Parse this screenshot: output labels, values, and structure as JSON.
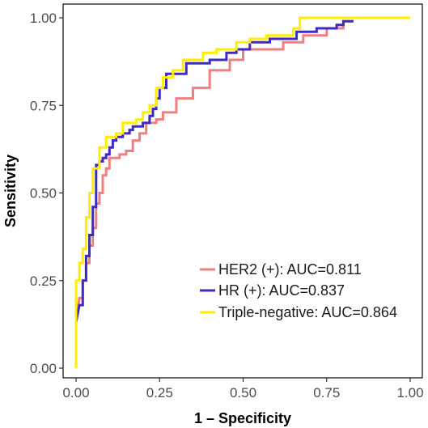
{
  "chart_data": {
    "type": "line",
    "title": "",
    "xlabel": "1 – Specificity",
    "ylabel": "Sensitivity",
    "xlim": [
      0,
      1
    ],
    "ylim": [
      0,
      1
    ],
    "x_ticks": [
      "0.00",
      "0.25",
      "0.50",
      "0.75",
      "1.00"
    ],
    "y_ticks": [
      "0.00",
      "0.25",
      "0.50",
      "0.75",
      "1.00"
    ],
    "grid": false,
    "legend_position": "bottom-right",
    "series": [
      {
        "name": "HER2 (+): AUC=0.811",
        "color": "#F08080",
        "points": [
          [
            0.0,
            0.13
          ],
          [
            0.01,
            0.2
          ],
          [
            0.02,
            0.2
          ],
          [
            0.02,
            0.25
          ],
          [
            0.03,
            0.25
          ],
          [
            0.03,
            0.3
          ],
          [
            0.04,
            0.3
          ],
          [
            0.04,
            0.35
          ],
          [
            0.05,
            0.35
          ],
          [
            0.05,
            0.4
          ],
          [
            0.06,
            0.4
          ],
          [
            0.06,
            0.47
          ],
          [
            0.07,
            0.47
          ],
          [
            0.07,
            0.5
          ],
          [
            0.08,
            0.5
          ],
          [
            0.08,
            0.55
          ],
          [
            0.09,
            0.55
          ],
          [
            0.09,
            0.57
          ],
          [
            0.1,
            0.57
          ],
          [
            0.1,
            0.6
          ],
          [
            0.13,
            0.6
          ],
          [
            0.13,
            0.61
          ],
          [
            0.15,
            0.61
          ],
          [
            0.15,
            0.62
          ],
          [
            0.17,
            0.62
          ],
          [
            0.17,
            0.65
          ],
          [
            0.19,
            0.65
          ],
          [
            0.19,
            0.67
          ],
          [
            0.21,
            0.67
          ],
          [
            0.21,
            0.7
          ],
          [
            0.24,
            0.7
          ],
          [
            0.24,
            0.71
          ],
          [
            0.26,
            0.71
          ],
          [
            0.26,
            0.73
          ],
          [
            0.3,
            0.73
          ],
          [
            0.3,
            0.77
          ],
          [
            0.35,
            0.77
          ],
          [
            0.35,
            0.8
          ],
          [
            0.4,
            0.8
          ],
          [
            0.4,
            0.85
          ],
          [
            0.46,
            0.85
          ],
          [
            0.46,
            0.88
          ],
          [
            0.5,
            0.88
          ],
          [
            0.5,
            0.91
          ],
          [
            0.62,
            0.91
          ],
          [
            0.62,
            0.93
          ],
          [
            0.68,
            0.93
          ],
          [
            0.68,
            0.95
          ],
          [
            0.75,
            0.95
          ],
          [
            0.75,
            0.97
          ],
          [
            0.8,
            0.97
          ],
          [
            0.8,
            0.99
          ],
          [
            0.83,
            0.99
          ]
        ]
      },
      {
        "name": "HR (+): AUC=0.837",
        "color": "#3F2BC4",
        "points": [
          [
            0.0,
            0.13
          ],
          [
            0.01,
            0.18
          ],
          [
            0.02,
            0.18
          ],
          [
            0.02,
            0.25
          ],
          [
            0.03,
            0.25
          ],
          [
            0.03,
            0.32
          ],
          [
            0.04,
            0.32
          ],
          [
            0.04,
            0.38
          ],
          [
            0.05,
            0.38
          ],
          [
            0.05,
            0.46
          ],
          [
            0.06,
            0.46
          ],
          [
            0.06,
            0.58
          ],
          [
            0.07,
            0.58
          ],
          [
            0.07,
            0.59
          ],
          [
            0.08,
            0.59
          ],
          [
            0.08,
            0.6
          ],
          [
            0.09,
            0.6
          ],
          [
            0.09,
            0.61
          ],
          [
            0.1,
            0.61
          ],
          [
            0.1,
            0.63
          ],
          [
            0.11,
            0.63
          ],
          [
            0.11,
            0.65
          ],
          [
            0.12,
            0.65
          ],
          [
            0.12,
            0.66
          ],
          [
            0.14,
            0.66
          ],
          [
            0.14,
            0.67
          ],
          [
            0.16,
            0.67
          ],
          [
            0.16,
            0.68
          ],
          [
            0.17,
            0.68
          ],
          [
            0.17,
            0.69
          ],
          [
            0.2,
            0.69
          ],
          [
            0.2,
            0.7
          ],
          [
            0.22,
            0.7
          ],
          [
            0.22,
            0.72
          ],
          [
            0.23,
            0.72
          ],
          [
            0.23,
            0.74
          ],
          [
            0.24,
            0.74
          ],
          [
            0.24,
            0.77
          ],
          [
            0.25,
            0.77
          ],
          [
            0.25,
            0.8
          ],
          [
            0.27,
            0.8
          ],
          [
            0.27,
            0.84
          ],
          [
            0.33,
            0.84
          ],
          [
            0.33,
            0.87
          ],
          [
            0.4,
            0.87
          ],
          [
            0.4,
            0.88
          ],
          [
            0.45,
            0.88
          ],
          [
            0.45,
            0.9
          ],
          [
            0.48,
            0.9
          ],
          [
            0.48,
            0.91
          ],
          [
            0.52,
            0.91
          ],
          [
            0.52,
            0.93
          ],
          [
            0.58,
            0.93
          ],
          [
            0.58,
            0.94
          ],
          [
            0.66,
            0.94
          ],
          [
            0.66,
            0.96
          ],
          [
            0.72,
            0.96
          ],
          [
            0.72,
            0.97
          ],
          [
            0.78,
            0.97
          ],
          [
            0.78,
            0.98
          ],
          [
            0.8,
            0.98
          ],
          [
            0.8,
            0.99
          ],
          [
            0.83,
            0.99
          ]
        ]
      },
      {
        "name": "Triple-negative: AUC=0.864",
        "color": "#FFEE00",
        "points": [
          [
            0.0,
            0.0
          ],
          [
            0.0,
            0.25
          ],
          [
            0.01,
            0.25
          ],
          [
            0.01,
            0.3
          ],
          [
            0.02,
            0.3
          ],
          [
            0.02,
            0.34
          ],
          [
            0.03,
            0.34
          ],
          [
            0.03,
            0.43
          ],
          [
            0.04,
            0.43
          ],
          [
            0.04,
            0.5
          ],
          [
            0.05,
            0.5
          ],
          [
            0.05,
            0.57
          ],
          [
            0.07,
            0.57
          ],
          [
            0.07,
            0.63
          ],
          [
            0.09,
            0.63
          ],
          [
            0.09,
            0.66
          ],
          [
            0.12,
            0.66
          ],
          [
            0.12,
            0.67
          ],
          [
            0.14,
            0.67
          ],
          [
            0.14,
            0.7
          ],
          [
            0.18,
            0.7
          ],
          [
            0.18,
            0.71
          ],
          [
            0.2,
            0.71
          ],
          [
            0.2,
            0.73
          ],
          [
            0.22,
            0.73
          ],
          [
            0.22,
            0.75
          ],
          [
            0.24,
            0.75
          ],
          [
            0.24,
            0.8
          ],
          [
            0.26,
            0.8
          ],
          [
            0.26,
            0.83
          ],
          [
            0.29,
            0.83
          ],
          [
            0.29,
            0.85
          ],
          [
            0.32,
            0.85
          ],
          [
            0.32,
            0.88
          ],
          [
            0.38,
            0.88
          ],
          [
            0.38,
            0.9
          ],
          [
            0.42,
            0.9
          ],
          [
            0.42,
            0.91
          ],
          [
            0.48,
            0.91
          ],
          [
            0.48,
            0.93
          ],
          [
            0.52,
            0.93
          ],
          [
            0.52,
            0.94
          ],
          [
            0.57,
            0.94
          ],
          [
            0.57,
            0.95
          ],
          [
            0.65,
            0.95
          ],
          [
            0.65,
            0.97
          ],
          [
            0.67,
            0.97
          ],
          [
            0.67,
            1.0
          ],
          [
            1.0,
            1.0
          ]
        ]
      }
    ]
  }
}
